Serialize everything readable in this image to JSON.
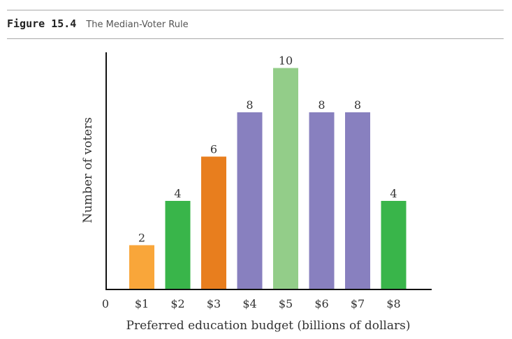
{
  "figure": {
    "number": "Figure 15.4",
    "title": "The Median-Voter Rule"
  },
  "chart_data": {
    "type": "bar",
    "title": "The Median-Voter Rule",
    "xlabel": "Preferred education budget (billions of dollars)",
    "ylabel": "Number of voters",
    "origin_label": "0",
    "categories": [
      "$1",
      "$2",
      "$3",
      "$4",
      "$5",
      "$6",
      "$7",
      "$8"
    ],
    "values": [
      2,
      4,
      6,
      8,
      10,
      8,
      8,
      4
    ],
    "bar_colors": [
      "#f9a63a",
      "#39b54a",
      "#e87e1e",
      "#8880bf",
      "#93cd89",
      "#8880bf",
      "#8880bf",
      "#39b54a"
    ],
    "ylim": [
      0,
      10.3
    ],
    "grid": false,
    "legend": "none"
  }
}
